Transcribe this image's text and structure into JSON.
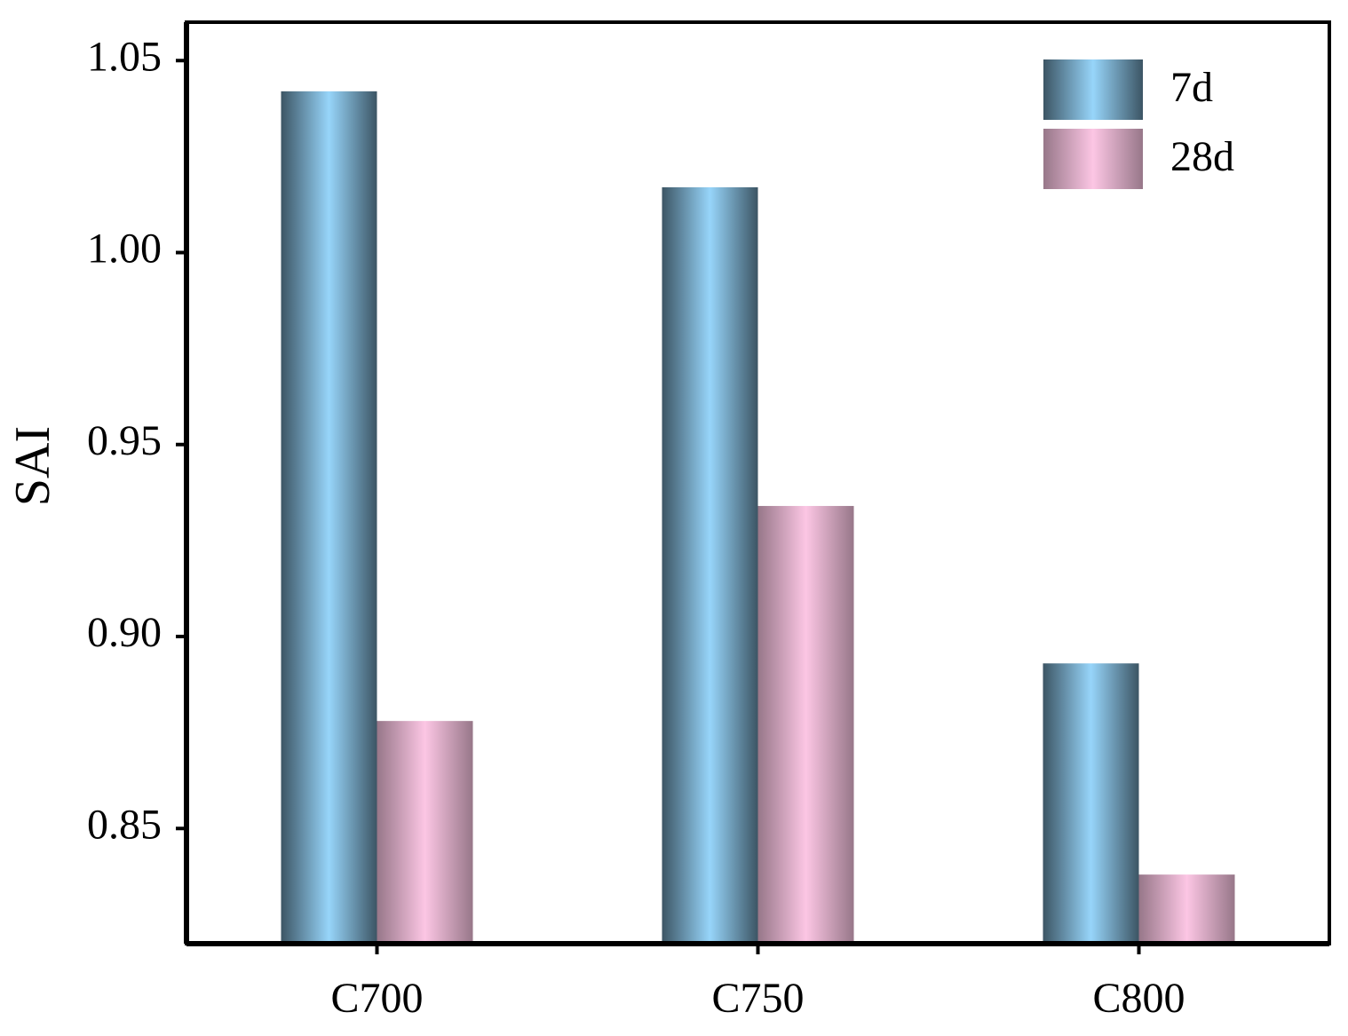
{
  "chart_data": {
    "type": "bar",
    "y_label": "SAI",
    "categories": [
      "C700",
      "C750",
      "C800"
    ],
    "series": [
      {
        "name": "7d",
        "color": "#97d5fa",
        "values": [
          1.042,
          1.017,
          0.893
        ]
      },
      {
        "name": "28d",
        "color": "#fcc6e4",
        "values": [
          0.878,
          0.934,
          0.838
        ]
      }
    ],
    "ylim": [
      0.82,
      1.06
    ],
    "yticks": [
      {
        "value": 0.85,
        "label": "0.85"
      },
      {
        "value": 0.9,
        "label": "0.90"
      },
      {
        "value": 0.95,
        "label": "0.95"
      },
      {
        "value": 1.0,
        "label": "1.00"
      },
      {
        "value": 1.05,
        "label": "1.05"
      }
    ],
    "legend": "top-right"
  }
}
